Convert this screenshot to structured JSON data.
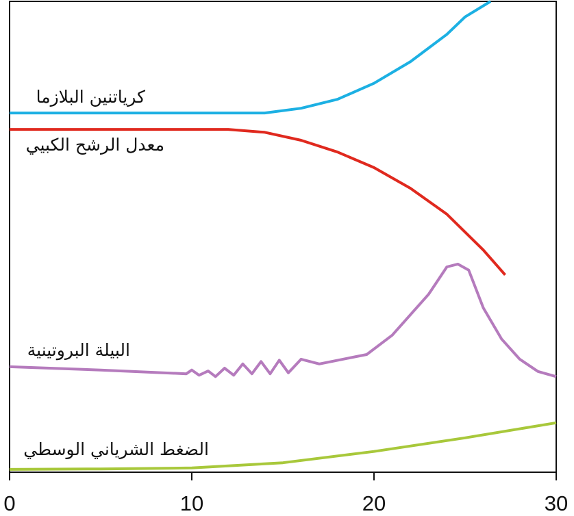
{
  "chart_data": {
    "type": "line",
    "xlim": [
      0,
      30
    ],
    "xticks": [
      0,
      10,
      20,
      30
    ],
    "ylim": [
      0,
      100
    ],
    "grid": false,
    "series": [
      {
        "name": "كرياتنين البلازما",
        "color": "#1cb0e3",
        "x": [
          0,
          5,
          10,
          14,
          16,
          18,
          20,
          22,
          24,
          25,
          26.4
        ],
        "values": [
          76.3,
          76.3,
          76.3,
          76.3,
          77.3,
          79.2,
          82.6,
          87.2,
          93.0,
          96.7,
          100
        ]
      },
      {
        "name": "معدل الرشح الكبيي",
        "color": "#e0291e",
        "x": [
          0,
          12,
          14,
          16,
          18,
          20,
          22,
          24,
          26,
          27.2
        ],
        "values": [
          72.8,
          72.8,
          72.2,
          70.5,
          68.0,
          64.7,
          60.3,
          54.8,
          47.2,
          41.9
        ]
      },
      {
        "name": "البيلة البروتينية",
        "color": "#b57bbd",
        "x": [
          0,
          5,
          9.7,
          10,
          10.4,
          10.9,
          11.3,
          11.8,
          12.3,
          12.8,
          13.3,
          13.8,
          14.3,
          14.8,
          15.3,
          16,
          17,
          19.6,
          21,
          23,
          24,
          24.6,
          25.2,
          26,
          27,
          28,
          29,
          30
        ],
        "values": [
          22.4,
          21.7,
          20.9,
          21.7,
          20.6,
          21.5,
          20.3,
          22.1,
          20.6,
          23.0,
          20.9,
          23.5,
          20.9,
          23.8,
          21.1,
          24.0,
          23.0,
          25.0,
          29.1,
          37.8,
          43.6,
          44.2,
          42.9,
          34.9,
          28.3,
          24.0,
          21.4,
          20.3
        ]
      },
      {
        "name": "الضغط الشرياني الوسطي",
        "color": "#a8c83b",
        "x": [
          0,
          5,
          10,
          15,
          20,
          25,
          30
        ],
        "values": [
          0.6,
          0.7,
          0.9,
          2.0,
          4.4,
          7.3,
          10.5
        ]
      }
    ]
  }
}
